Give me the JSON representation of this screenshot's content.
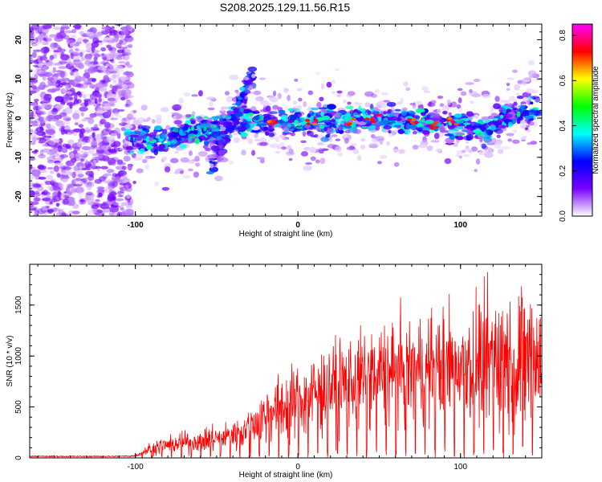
{
  "figure_title": "S208.2025.129.11.56.R15",
  "chart_data": [
    {
      "type": "heatmap",
      "title": "",
      "xlabel": "Height of straight line (km)",
      "ylabel": "Frequency (Hz)",
      "xlim": [
        -165,
        150
      ],
      "ylim": [
        -25,
        24
      ],
      "x_ticks": [
        -100,
        0,
        100
      ],
      "y_ticks": [
        -20,
        -10,
        0,
        10,
        20
      ],
      "colorbar": {
        "label": "Normalized spectral amplitude",
        "range": [
          0.0,
          0.85
        ],
        "ticks": [
          "0.0",
          "0.2",
          "0.4",
          "0.6",
          "0.8"
        ],
        "tick_values": [
          0.0,
          0.2,
          0.4,
          0.6,
          0.8
        ],
        "colors": [
          "#ffffff",
          "#7700ff",
          "#0000ff",
          "#00ffff",
          "#00ff00",
          "#ffff00",
          "#ff0000",
          "#ff00ff"
        ]
      },
      "features": [
        {
          "name": "noise",
          "x": [
            -165,
            -103
          ],
          "freq": [
            -25,
            24
          ],
          "amplitude": 0.12
        },
        {
          "name": "track",
          "points": [
            [
              -105,
              -5
            ],
            [
              -80,
              -6
            ],
            [
              -65,
              -3
            ],
            [
              -55,
              -4
            ],
            [
              -40,
              -1
            ],
            [
              -20,
              -1
            ],
            [
              0,
              -1
            ],
            [
              20,
              -1
            ],
            [
              40,
              0
            ],
            [
              60,
              -1
            ],
            [
              80,
              -1
            ],
            [
              100,
              -2
            ],
            [
              115,
              -3
            ],
            [
              130,
              1
            ],
            [
              148,
              3
            ]
          ],
          "amplitude": 0.35
        },
        {
          "name": "steep_track",
          "points": [
            [
              -55,
              -13
            ],
            [
              -42,
              -3
            ],
            [
              -28,
              11
            ]
          ],
          "amplitude": 0.28
        },
        {
          "name": "peaks",
          "points": [
            [
              -15,
              -1
            ],
            [
              10,
              -1
            ],
            [
              30,
              -1
            ],
            [
              45,
              0
            ],
            [
              70,
              -1
            ],
            [
              85,
              -2
            ],
            [
              95,
              -1
            ]
          ],
          "amplitude": 0.78
        }
      ]
    },
    {
      "type": "line",
      "title": "",
      "xlabel": "Height of straight line (km)",
      "ylabel": "SNR (10 * v/v)",
      "xlim": [
        -165,
        150
      ],
      "ylim": [
        0,
        1900
      ],
      "x_ticks": [
        -100,
        0,
        100
      ],
      "y_ticks": [
        0,
        500,
        1000,
        1500
      ],
      "color": "#ff0000",
      "envelope": {
        "x": [
          -165,
          -110,
          -100,
          -90,
          -80,
          -60,
          -40,
          -30,
          -20,
          -10,
          0,
          10,
          20,
          30,
          40,
          50,
          60,
          70,
          80,
          90,
          100,
          110,
          120,
          130,
          140,
          150
        ],
        "mean": [
          15,
          15,
          20,
          100,
          130,
          170,
          220,
          310,
          420,
          500,
          560,
          640,
          700,
          740,
          780,
          820,
          840,
          860,
          880,
          900,
          920,
          950,
          980,
          1000,
          1020,
          1000
        ],
        "spread": [
          5,
          5,
          10,
          60,
          80,
          100,
          140,
          200,
          260,
          300,
          320,
          350,
          380,
          400,
          420,
          440,
          460,
          470,
          480,
          500,
          520,
          560,
          600,
          650,
          700,
          700
        ],
        "dip_spacing_km": 6
      }
    }
  ]
}
